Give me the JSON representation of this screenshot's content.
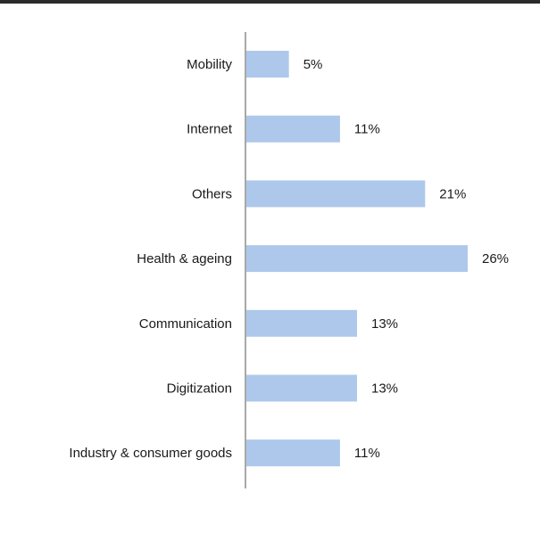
{
  "chart_data": {
    "type": "bar",
    "orientation": "horizontal",
    "categories": [
      "Mobility",
      "Internet",
      "Others",
      "Health & ageing",
      "Communication",
      "Digitization",
      "Industry & consumer goods"
    ],
    "values": [
      5,
      11,
      21,
      26,
      13,
      13,
      11
    ],
    "value_labels": [
      "5%",
      "11%",
      "21%",
      "26%",
      "13%",
      "13%",
      "11%"
    ],
    "title": "",
    "xlabel": "",
    "ylabel": "",
    "xlim": [
      0,
      26
    ],
    "grid": false,
    "legend": "none",
    "bar_color": "#adc8ea",
    "axis_color": "#8c8c8c"
  }
}
